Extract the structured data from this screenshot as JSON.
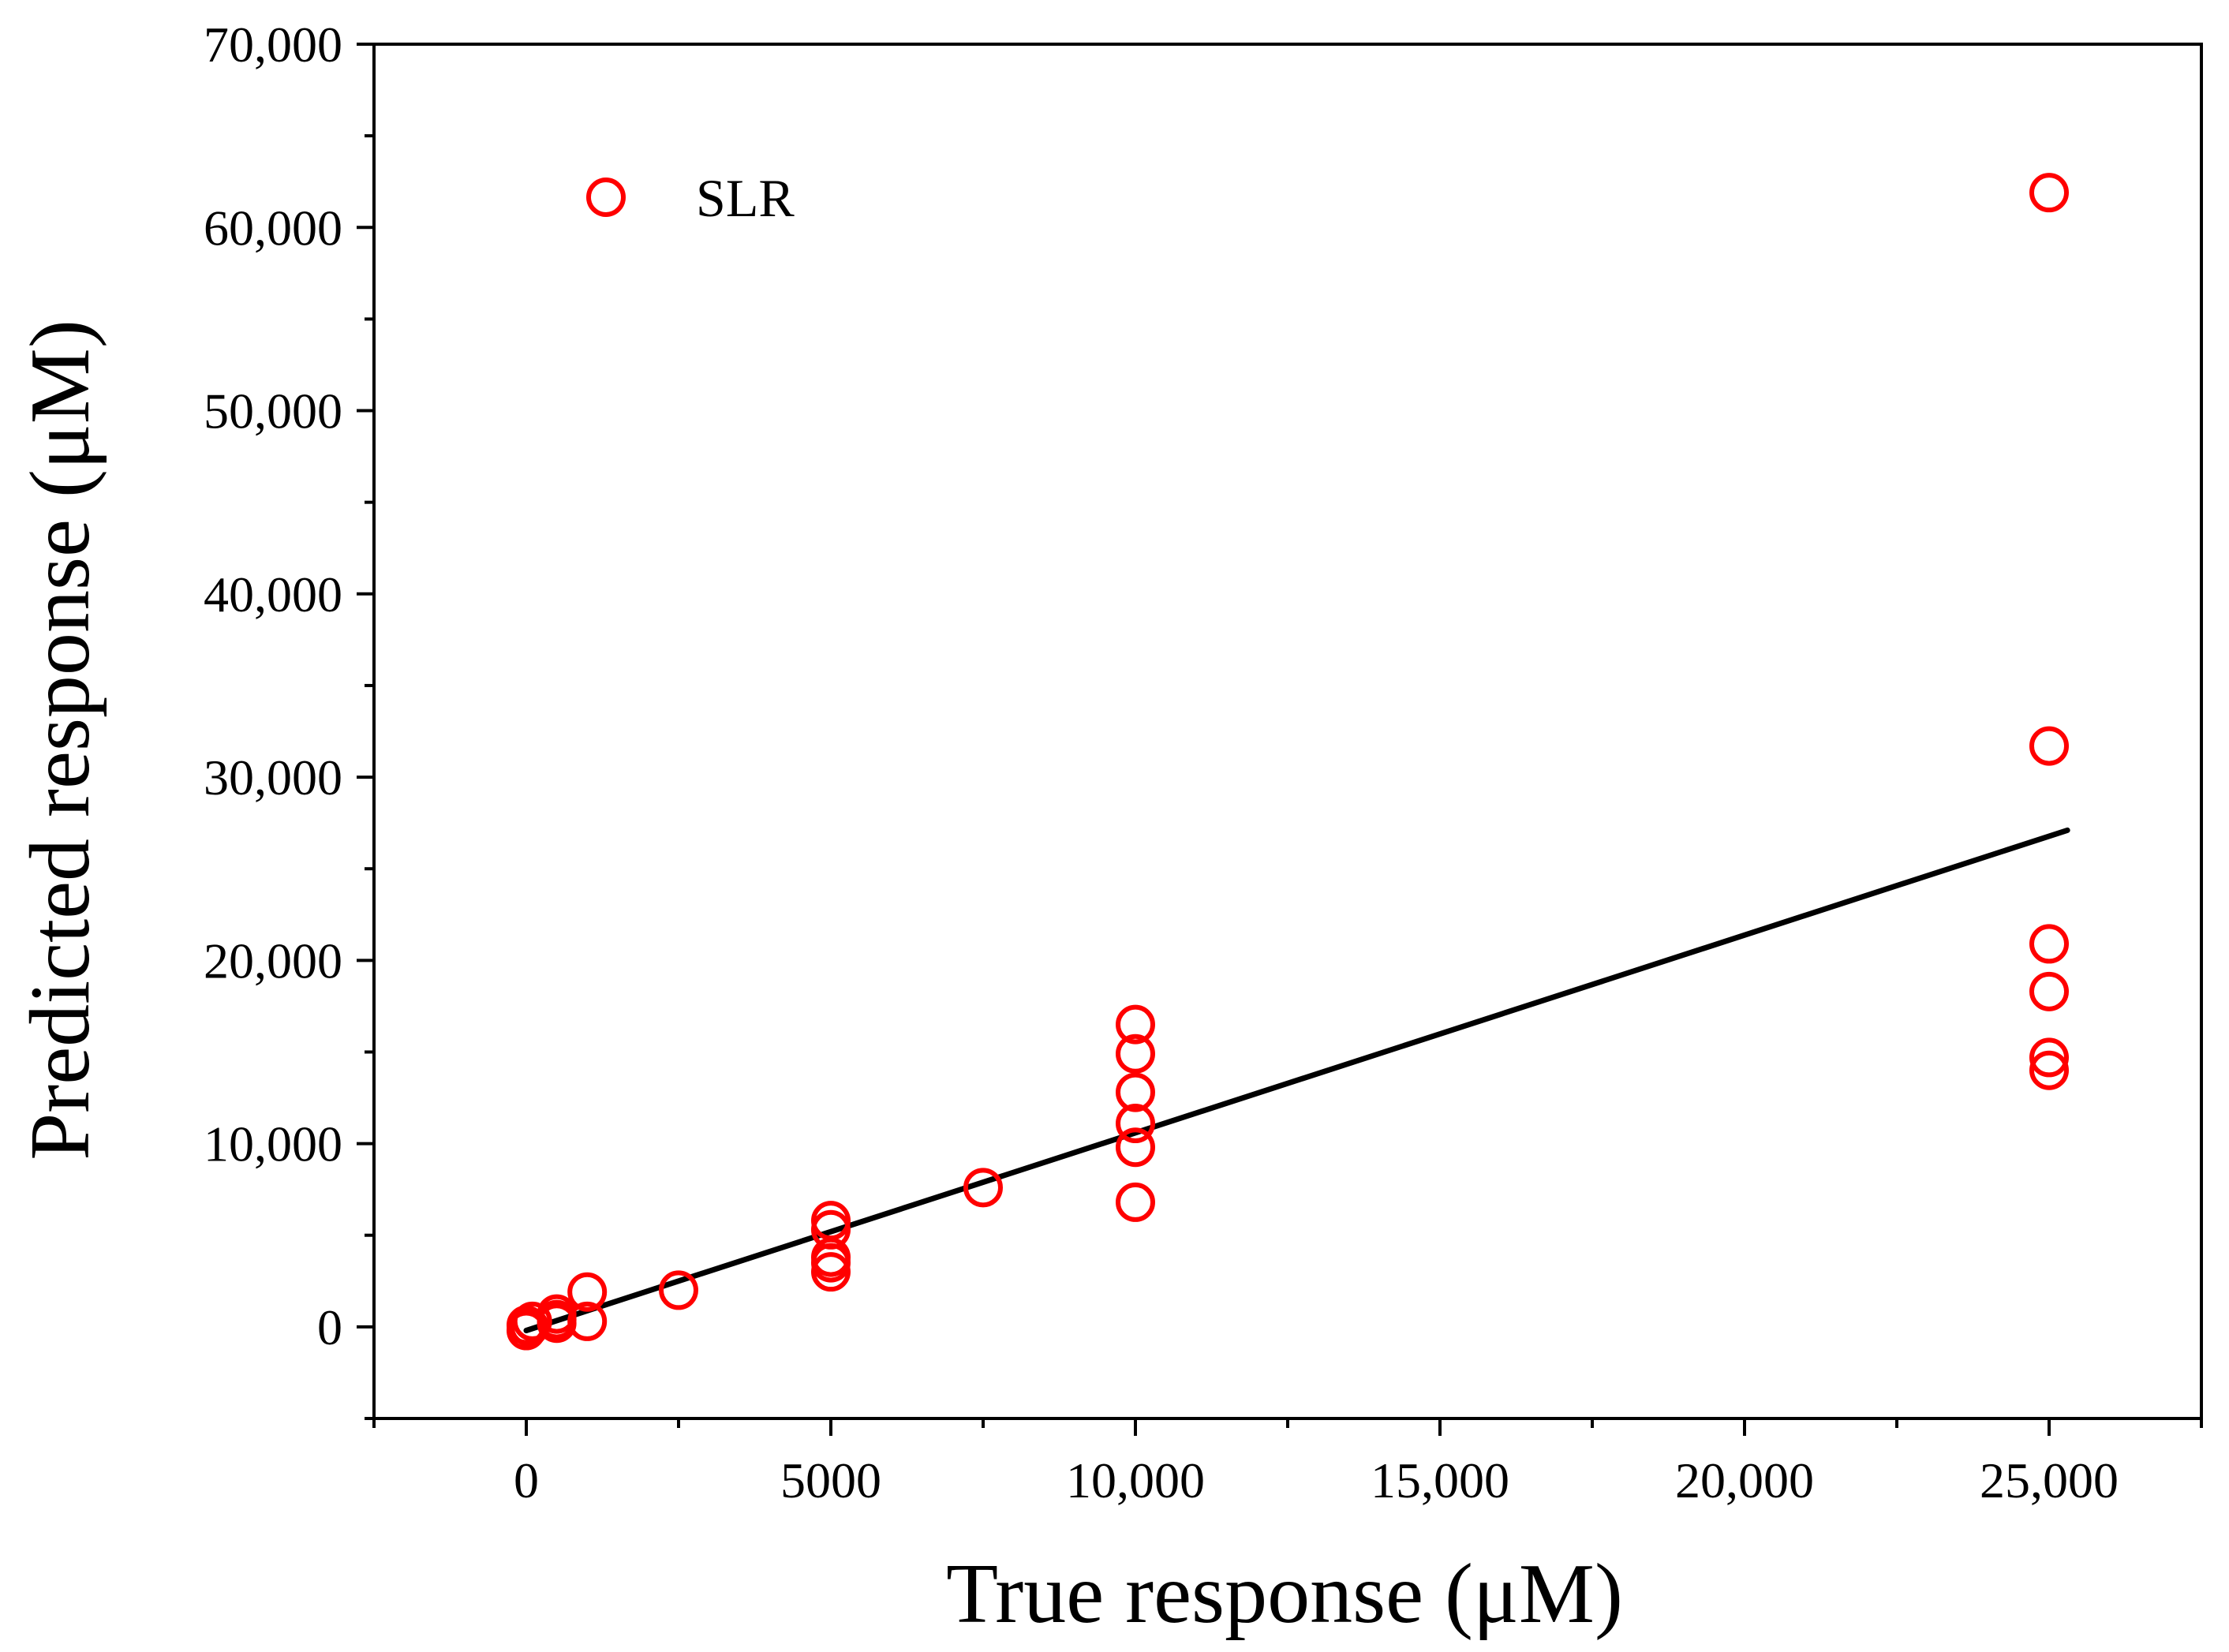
{
  "chart_data": {
    "type": "scatter",
    "title": "",
    "xlabel": "True response (μM)",
    "ylabel": "Predicted response (μM)",
    "xlim": [
      -2500,
      27500
    ],
    "ylim": [
      -5000,
      70000
    ],
    "x_ticks": [
      0,
      5000,
      10000,
      15000,
      20000,
      25000
    ],
    "x_tick_labels": [
      "0",
      "5000",
      "10,000",
      "15,000",
      "20,000",
      "25,000"
    ],
    "y_ticks": [
      0,
      10000,
      20000,
      30000,
      40000,
      50000,
      60000,
      70000
    ],
    "y_tick_labels": [
      "0",
      "10,000",
      "20,000",
      "30,000",
      "40,000",
      "50,000",
      "60,000",
      "70,000"
    ],
    "grid": false,
    "legend_position": "top-left",
    "series": [
      {
        "name": "SLR",
        "marker": "open-circle",
        "color": "#ff0000",
        "points": [
          [
            0,
            100
          ],
          [
            0,
            -200
          ],
          [
            50,
            0
          ],
          [
            100,
            300
          ],
          [
            500,
            400
          ],
          [
            500,
            700
          ],
          [
            500,
            200
          ],
          [
            1000,
            300
          ],
          [
            1000,
            1900
          ],
          [
            2500,
            2000
          ],
          [
            5000,
            5800
          ],
          [
            5000,
            5300
          ],
          [
            5000,
            3800
          ],
          [
            5000,
            3000
          ],
          [
            5000,
            3500
          ],
          [
            7500,
            7600
          ],
          [
            10000,
            16500
          ],
          [
            10000,
            14900
          ],
          [
            10000,
            12800
          ],
          [
            10000,
            11100
          ],
          [
            10000,
            9800
          ],
          [
            10000,
            6800
          ],
          [
            25000,
            61900
          ],
          [
            25000,
            31700
          ],
          [
            25000,
            20900
          ],
          [
            25000,
            18300
          ],
          [
            25000,
            14700
          ],
          [
            25000,
            14000
          ]
        ]
      }
    ],
    "fit_line": {
      "color": "#000000",
      "points": [
        [
          0,
          -200
        ],
        [
          25300,
          27100
        ]
      ]
    }
  }
}
